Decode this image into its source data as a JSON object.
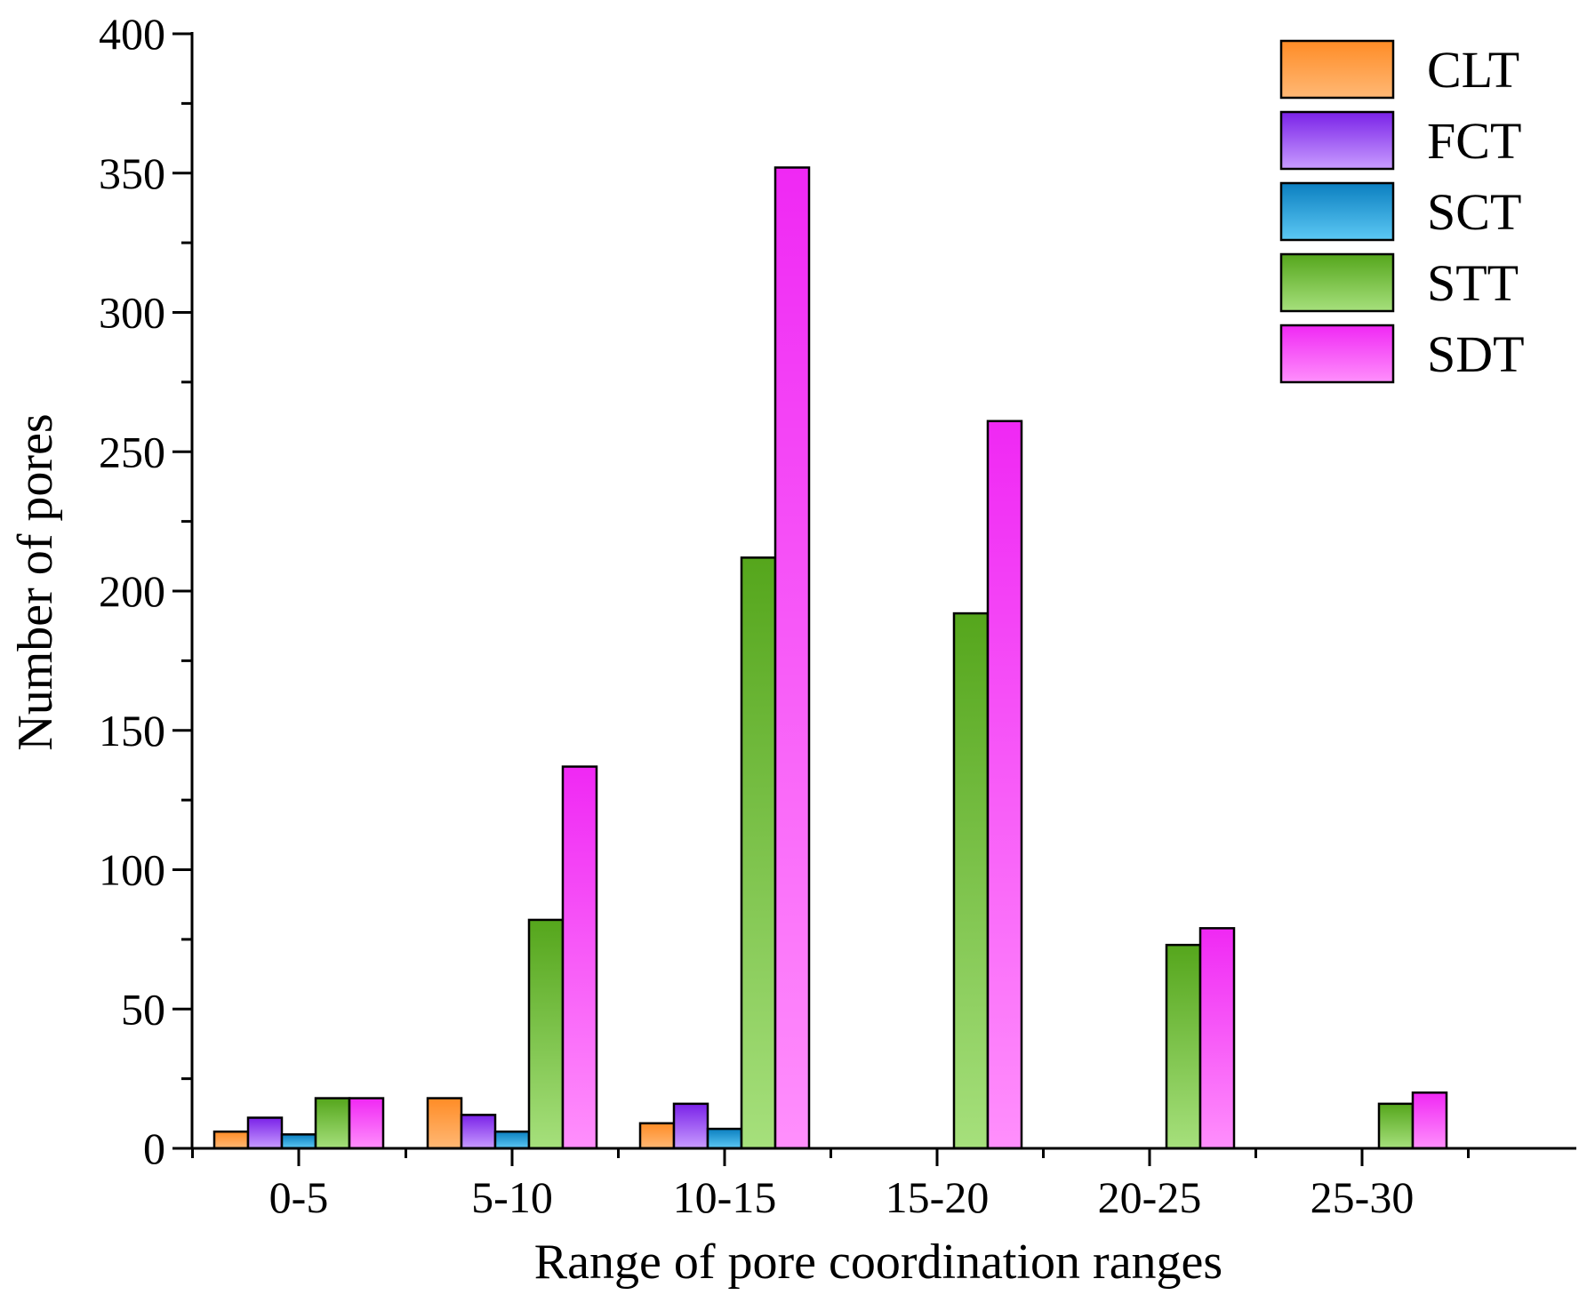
{
  "chart_data": {
    "type": "bar",
    "title": "",
    "xlabel": "Range of pore coordination ranges",
    "ylabel": "Number of pores",
    "categories": [
      "0-5",
      "5-10",
      "10-15",
      "15-20",
      "20-25",
      "25-30"
    ],
    "ylim": [
      0,
      400
    ],
    "yticks": [
      0,
      50,
      100,
      150,
      200,
      250,
      300,
      350,
      400
    ],
    "grid": false,
    "legend_position": "top-right",
    "series": [
      {
        "name": "CLT",
        "values": [
          6,
          18,
          9,
          0,
          0,
          0
        ],
        "color_top": "#ff8c26",
        "color_bottom": "#ffb875"
      },
      {
        "name": "FCT",
        "values": [
          11,
          12,
          16,
          0,
          0,
          0
        ],
        "color_top": "#7a22e8",
        "color_bottom": "#c89cff"
      },
      {
        "name": "SCT",
        "values": [
          5,
          6,
          7,
          0,
          0,
          0
        ],
        "color_top": "#0b7fc0",
        "color_bottom": "#5cc8f4"
      },
      {
        "name": "STT",
        "values": [
          18,
          82,
          212,
          192,
          73,
          16
        ],
        "color_top": "#55a61c",
        "color_bottom": "#a6e07c"
      },
      {
        "name": "SDT",
        "values": [
          18,
          137,
          352,
          261,
          79,
          20
        ],
        "color_top": "#f028f4",
        "color_bottom": "#ff8ffc"
      }
    ]
  }
}
